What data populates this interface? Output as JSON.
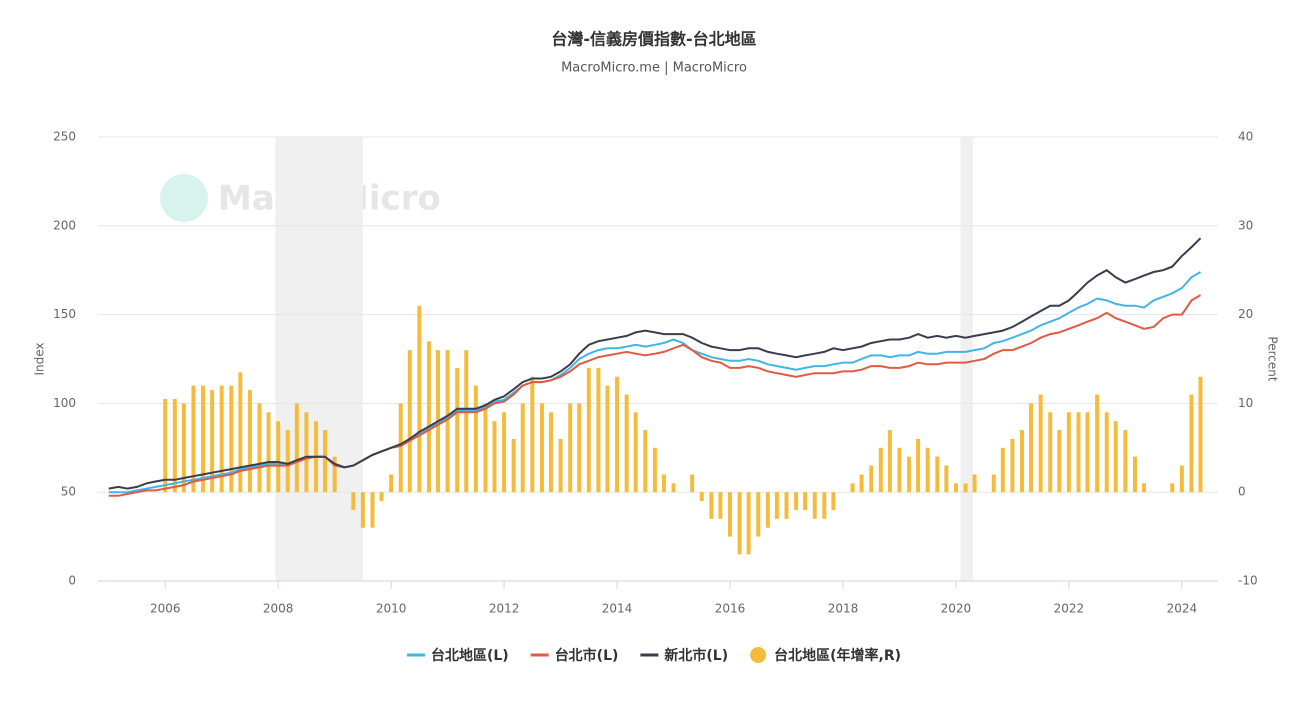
{
  "chart_data": {
    "type": "line",
    "title": "台灣-信義房價指數-台北地區",
    "subtitle": "MacroMicro.me | MacroMicro",
    "watermark": "MacroMicro",
    "ylabel": "Index",
    "y2label": "Percent",
    "xlim": [
      2004.81,
      2024.64
    ],
    "xticks": [
      2006,
      2008,
      2010,
      2012,
      2014,
      2016,
      2018,
      2020,
      2022,
      2024
    ],
    "ylim": [
      0,
      250
    ],
    "yticks": [
      0,
      50,
      100,
      150,
      200,
      250
    ],
    "y2lim": [
      -10,
      40
    ],
    "y2ticks": [
      -10,
      0,
      10,
      20,
      30,
      40
    ],
    "grid": true,
    "shaded": [
      [
        2007.95,
        2009.5
      ],
      [
        2020.08,
        2020.3
      ]
    ],
    "x": [
      2005,
      2005.17,
      2005.33,
      2005.5,
      2005.67,
      2005.83,
      2006,
      2006.17,
      2006.33,
      2006.5,
      2006.67,
      2006.83,
      2007,
      2007.17,
      2007.33,
      2007.5,
      2007.67,
      2007.83,
      2008,
      2008.17,
      2008.33,
      2008.5,
      2008.67,
      2008.83,
      2009,
      2009.17,
      2009.33,
      2009.5,
      2009.67,
      2009.83,
      2010,
      2010.17,
      2010.33,
      2010.5,
      2010.67,
      2010.83,
      2011,
      2011.17,
      2011.33,
      2011.5,
      2011.67,
      2011.83,
      2012,
      2012.17,
      2012.33,
      2012.5,
      2012.67,
      2012.83,
      2013,
      2013.17,
      2013.33,
      2013.5,
      2013.67,
      2013.83,
      2014,
      2014.17,
      2014.33,
      2014.5,
      2014.67,
      2014.83,
      2015,
      2015.17,
      2015.33,
      2015.5,
      2015.67,
      2015.83,
      2016,
      2016.17,
      2016.33,
      2016.5,
      2016.67,
      2016.83,
      2017,
      2017.17,
      2017.33,
      2017.5,
      2017.67,
      2017.83,
      2018,
      2018.17,
      2018.33,
      2018.5,
      2018.67,
      2018.83,
      2019,
      2019.17,
      2019.33,
      2019.5,
      2019.67,
      2019.83,
      2020,
      2020.17,
      2020.33,
      2020.5,
      2020.67,
      2020.83,
      2021,
      2021.17,
      2021.33,
      2021.5,
      2021.67,
      2021.83,
      2022,
      2022.17,
      2022.33,
      2022.5,
      2022.67,
      2022.83,
      2023,
      2023.17,
      2023.33,
      2023.5,
      2023.67,
      2023.83,
      2024,
      2024.17,
      2024.33
    ],
    "series": [
      {
        "name": "台北地區(L)",
        "color": "#41b6e6",
        "kind": "line",
        "values": [
          50,
          50,
          50,
          51,
          52,
          53,
          54,
          55,
          56,
          57,
          58,
          59,
          60,
          61,
          63,
          64,
          65,
          66,
          66,
          66,
          67,
          69,
          70,
          70,
          66,
          64,
          65,
          68,
          71,
          73,
          75,
          77,
          80,
          83,
          86,
          89,
          92,
          96,
          96,
          96,
          98,
          101,
          102,
          106,
          110,
          112,
          112,
          113,
          116,
          120,
          125,
          128,
          130,
          131,
          131,
          132,
          133,
          132,
          133,
          134,
          136,
          134,
          130,
          128,
          126,
          125,
          124,
          124,
          125,
          124,
          122,
          121,
          120,
          119,
          120,
          121,
          121,
          122,
          123,
          123,
          125,
          127,
          127,
          126,
          127,
          127,
          129,
          128,
          128,
          129,
          129,
          129,
          130,
          131,
          134,
          135,
          137,
          139,
          141,
          144,
          146,
          148,
          151,
          154,
          156,
          159,
          158,
          156,
          155,
          155,
          154,
          158,
          160,
          162,
          165,
          171,
          174
        ]
      },
      {
        "name": "台北市(L)",
        "color": "#e05b44",
        "kind": "line",
        "values": [
          48,
          48,
          49,
          50,
          51,
          51,
          52,
          53,
          54,
          56,
          57,
          58,
          59,
          60,
          62,
          63,
          64,
          65,
          65,
          65,
          67,
          69,
          70,
          70,
          65,
          64,
          65,
          68,
          71,
          73,
          75,
          76,
          79,
          82,
          85,
          88,
          91,
          95,
          95,
          95,
          97,
          100,
          101,
          105,
          110,
          112,
          112,
          113,
          115,
          118,
          122,
          124,
          126,
          127,
          128,
          129,
          128,
          127,
          128,
          129,
          131,
          133,
          130,
          126,
          124,
          123,
          120,
          120,
          121,
          120,
          118,
          117,
          116,
          115,
          116,
          117,
          117,
          117,
          118,
          118,
          119,
          121,
          121,
          120,
          120,
          121,
          123,
          122,
          122,
          123,
          123,
          123,
          124,
          125,
          128,
          130,
          130,
          132,
          134,
          137,
          139,
          140,
          142,
          144,
          146,
          148,
          151,
          148,
          146,
          144,
          142,
          143,
          148,
          150,
          150,
          158,
          161
        ]
      },
      {
        "name": "新北市(L)",
        "color": "#3c3c4f",
        "kind": "line",
        "values": [
          52,
          53,
          52,
          53,
          55,
          56,
          57,
          57,
          58,
          59,
          60,
          61,
          62,
          63,
          64,
          65,
          66,
          67,
          67,
          66,
          68,
          70,
          70,
          70,
          66,
          64,
          65,
          68,
          71,
          73,
          75,
          77,
          80,
          84,
          87,
          90,
          93,
          97,
          97,
          97,
          99,
          102,
          104,
          108,
          112,
          114,
          114,
          115,
          118,
          122,
          128,
          133,
          135,
          136,
          137,
          138,
          140,
          141,
          140,
          139,
          139,
          139,
          137,
          134,
          132,
          131,
          130,
          130,
          131,
          131,
          129,
          128,
          127,
          126,
          127,
          128,
          129,
          131,
          130,
          131,
          132,
          134,
          135,
          136,
          136,
          137,
          139,
          137,
          138,
          137,
          138,
          137,
          138,
          139,
          140,
          141,
          143,
          146,
          149,
          152,
          155,
          155,
          158,
          163,
          168,
          172,
          175,
          171,
          168,
          170,
          172,
          174,
          175,
          177,
          183,
          188,
          193
        ]
      },
      {
        "name": "台北地區(年增率,R)",
        "color": "#f5bc3c",
        "kind": "bar",
        "axis": "y2",
        "values": [
          null,
          null,
          null,
          null,
          null,
          null,
          10.5,
          10.5,
          10,
          12,
          12,
          11.5,
          12,
          12,
          13.5,
          11.5,
          10,
          9,
          8,
          7,
          10,
          9,
          8,
          7,
          4,
          0,
          -2,
          -4,
          -4,
          -1,
          2,
          10,
          16,
          21,
          17,
          16,
          16,
          14,
          16,
          12,
          10,
          8,
          9,
          6,
          10,
          13,
          10,
          9,
          6,
          10,
          10,
          14,
          14,
          12,
          13,
          11,
          9,
          7,
          5,
          2,
          1,
          0,
          2,
          -1,
          -3,
          -3,
          -5,
          -7,
          -7,
          -5,
          -4,
          -3,
          -3,
          -2,
          -2,
          -3,
          -3,
          -2,
          0,
          1,
          2,
          3,
          5,
          7,
          5,
          4,
          6,
          5,
          4,
          3,
          1,
          1,
          2,
          0,
          2,
          5,
          6,
          7,
          10,
          11,
          9,
          7,
          9,
          9,
          9,
          11,
          9,
          8,
          7,
          4,
          1,
          0,
          0,
          1,
          3,
          11,
          13
        ]
      }
    ]
  }
}
